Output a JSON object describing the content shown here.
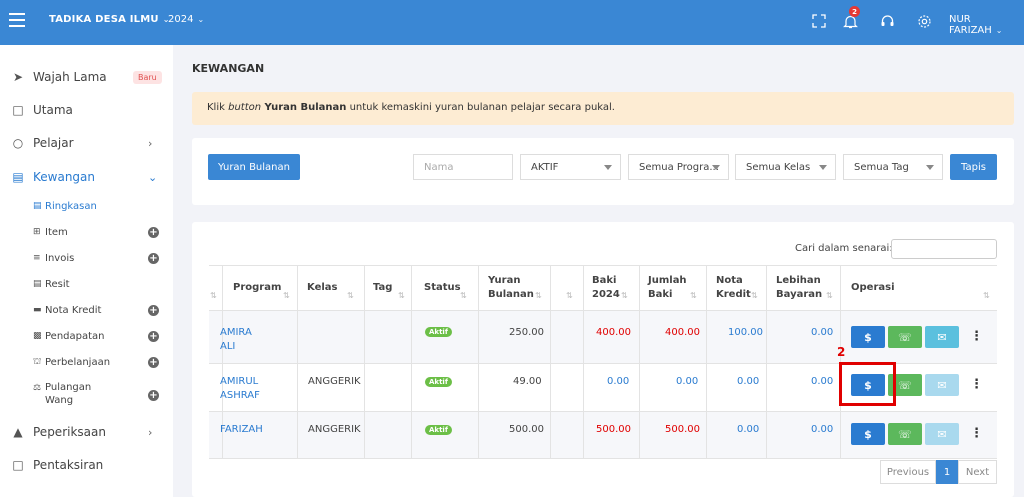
{
  "topbar": {
    "brand": "TADIKA DESA ILMU",
    "year": "2024",
    "notification_count": "2",
    "user": "NUR FARIZAH"
  },
  "sidebar": {
    "items": [
      {
        "label": "Wajah Lama",
        "badge": "Baru"
      },
      {
        "label": "Utama"
      },
      {
        "label": "Pelajar"
      },
      {
        "label": "Kewangan"
      },
      {
        "label": "Peperiksaan"
      },
      {
        "label": "Pentaksiran"
      }
    ],
    "subitems": [
      {
        "label": "Ringkasan"
      },
      {
        "label": "Item"
      },
      {
        "label": "Invois"
      },
      {
        "label": "Resit"
      },
      {
        "label": "Nota Kredit"
      },
      {
        "label": "Pendapatan"
      },
      {
        "label": "Perbelanjaan"
      },
      {
        "label": "Pulangan",
        "label2": "Wang"
      }
    ]
  },
  "page": {
    "title": "KEWANGAN",
    "alert_pre": "Klik ",
    "alert_italic": "button",
    "alert_bold": " Yuran Bulanan",
    "alert_post": " untuk kemaskini yuran bulanan pelajar secara pukal."
  },
  "filters": {
    "yuran_button": "Yuran Bulanan",
    "name_placeholder": "Nama",
    "status": "AKTIF",
    "program": "Semua Progra...",
    "kelas": "Semua Kelas",
    "tag": "Semua Tag",
    "tapis_button": "Tapis"
  },
  "table": {
    "search_label": "Cari dalam senarai:",
    "headers": {
      "program": "Program",
      "kelas": "Kelas",
      "tag": "Tag",
      "status": "Status",
      "yuran1": "Yuran",
      "yuran2": "Bulanan",
      "baki1": "Baki",
      "baki2": "2024",
      "jumlah1": "Jumlah",
      "jumlah2": "Baki",
      "nota1": "Nota",
      "nota2": "Kredit",
      "lebihan1": "Lebihan",
      "lebihan2": "Bayaran",
      "operasi": "Operasi"
    },
    "rows": [
      {
        "name1": "AMIRA",
        "name2": "ALI",
        "kelas": "",
        "status": "Aktif",
        "yuran": "250.00",
        "baki": "400.00",
        "jumlah": "400.00",
        "nota": "100.00",
        "lebihan": "0.00"
      },
      {
        "name1": "AMIRUL",
        "name2": "ASHRAF",
        "kelas": "ANGGERIK",
        "status": "Aktif",
        "yuran": "49.00",
        "baki": "0.00",
        "jumlah": "0.00",
        "nota": "0.00",
        "lebihan": "0.00"
      },
      {
        "name1": "FARIZAH",
        "name2": "",
        "kelas": "ANGGERIK",
        "status": "Aktif",
        "yuran": "500.00",
        "baki": "500.00",
        "jumlah": "500.00",
        "nota": "0.00",
        "lebihan": "0.00"
      }
    ],
    "annotation": "2"
  },
  "pagination": {
    "previous": "Previous",
    "page": "1",
    "next": "Next"
  },
  "colors": {
    "primary": "#3a87d4",
    "danger": "#e00000",
    "success": "#5cb85c",
    "info": "#5bc0de",
    "alert_bg": "#fdecd3"
  }
}
